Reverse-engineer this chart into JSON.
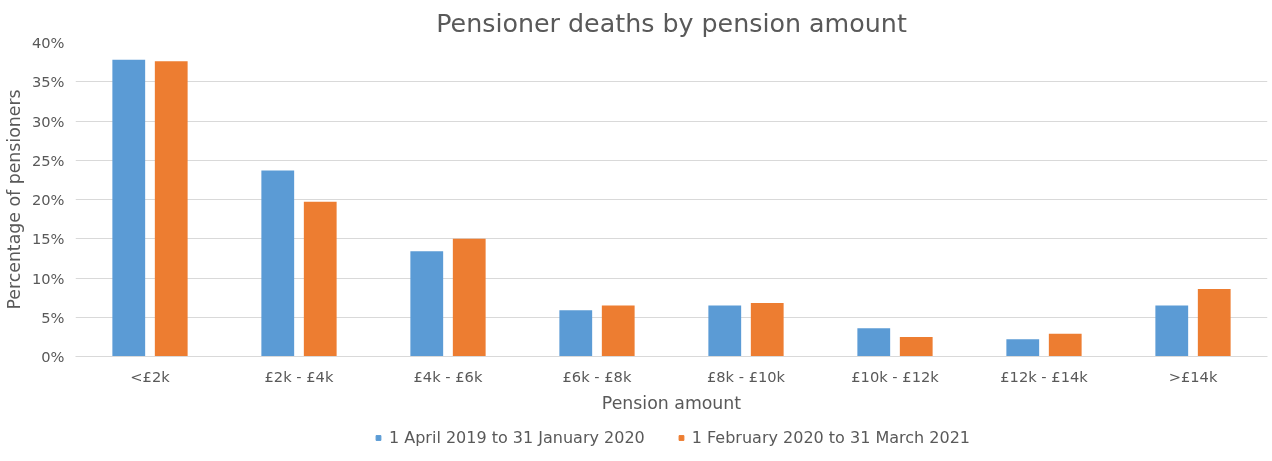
{
  "chart_data": {
    "type": "bar",
    "title": "Pensioner deaths by pension amount",
    "xlabel": "Pension amount",
    "ylabel": "Percentage of pensioners",
    "categories": [
      "<£2k",
      "£2k - £4k",
      "£4k - £6k",
      "£6k - £8k",
      "£8k - £10k",
      "£10k - £12k",
      "£12k - £14k",
      ">£14k"
    ],
    "series": [
      {
        "name": "1 April 2019 to 31 January 2020",
        "color": "#5b9bd5",
        "values": [
          37.8,
          23.7,
          13.4,
          5.9,
          6.5,
          3.6,
          2.2,
          6.5
        ]
      },
      {
        "name": "1 February 2020 to 31 March 2021",
        "color": "#ed7d31",
        "values": [
          37.6,
          19.7,
          15.0,
          6.5,
          6.8,
          2.5,
          2.9,
          8.6
        ]
      }
    ],
    "ylim": [
      0,
      40
    ],
    "yticks": [
      {
        "value": 0,
        "label": "0%"
      },
      {
        "value": 5,
        "label": "5%"
      },
      {
        "value": 10,
        "label": "10%"
      },
      {
        "value": 15,
        "label": "15%"
      },
      {
        "value": 20,
        "label": "20%"
      },
      {
        "value": 25,
        "label": "25%"
      },
      {
        "value": 30,
        "label": "30%"
      },
      {
        "value": 35,
        "label": "35%"
      },
      {
        "value": 40,
        "label": "40%"
      }
    ],
    "grid": "y",
    "legend": "bottom"
  }
}
